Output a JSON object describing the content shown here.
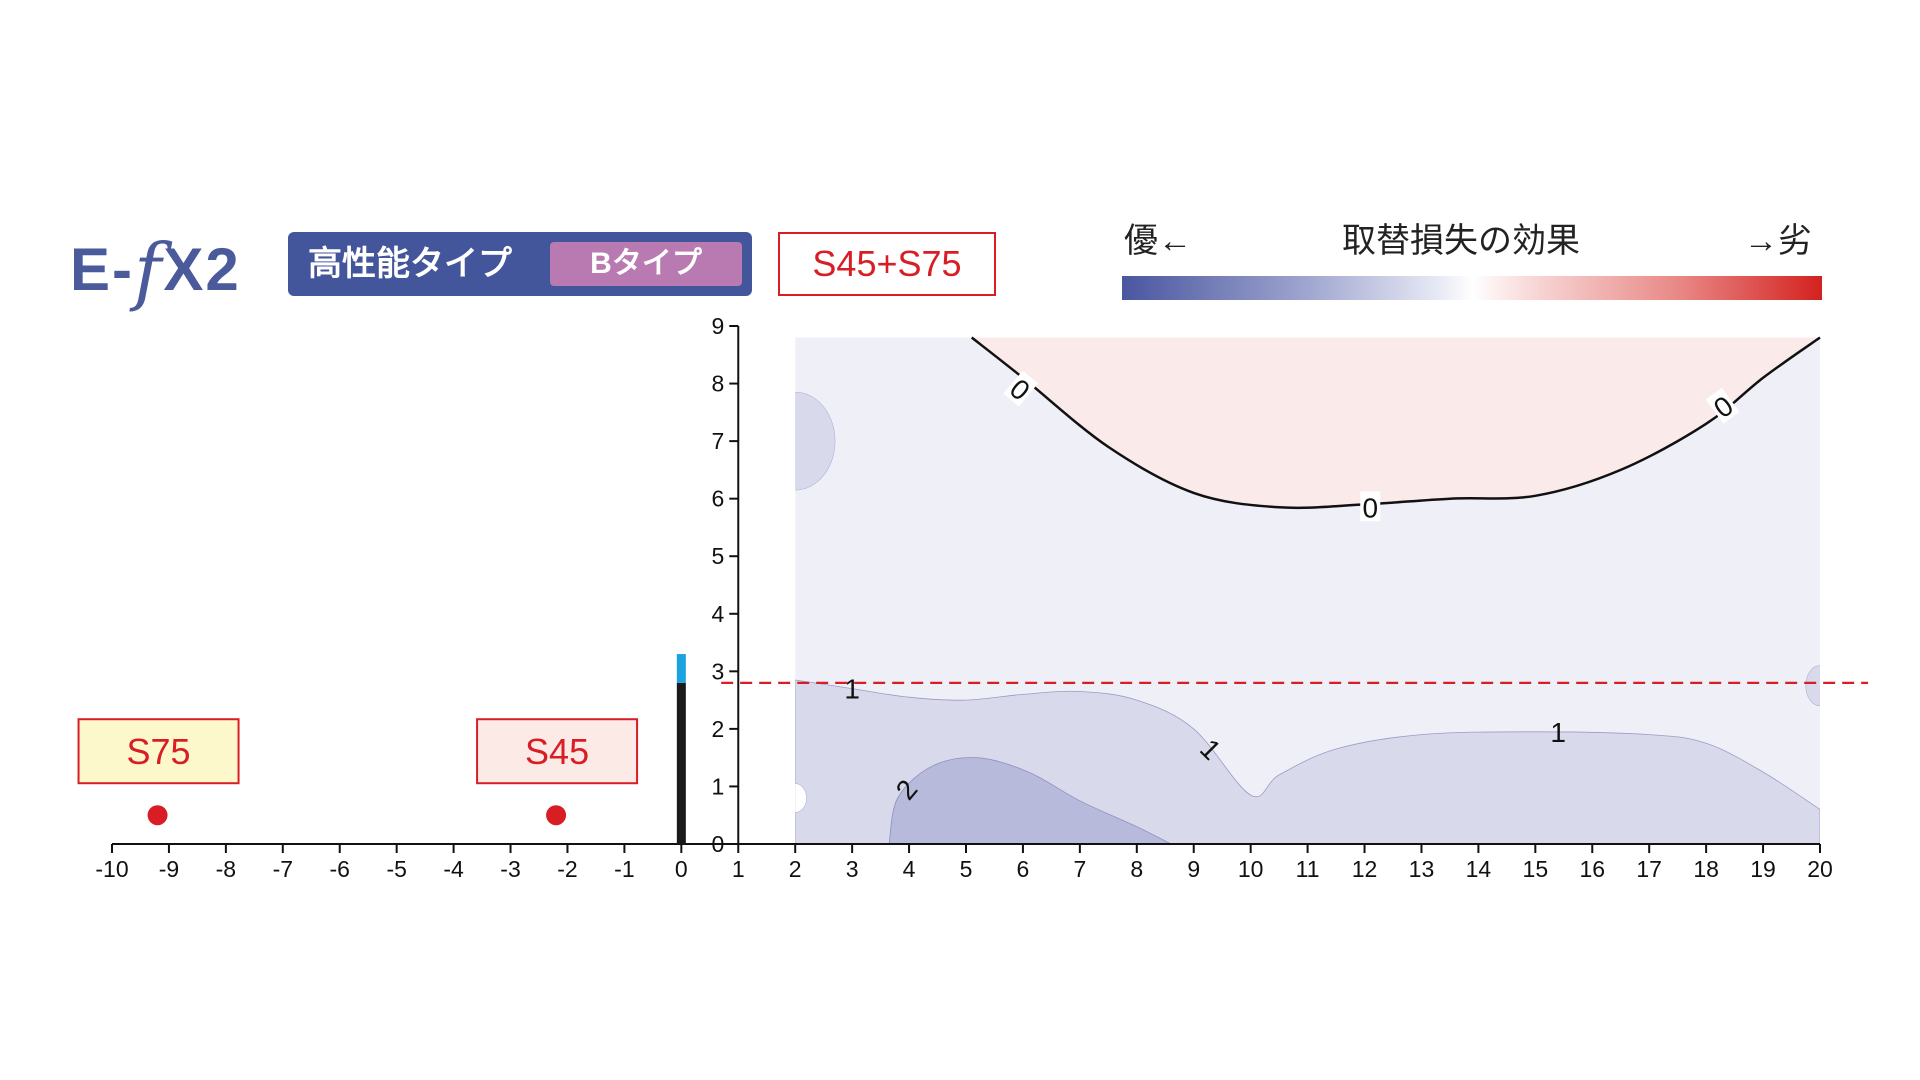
{
  "header": {
    "logo": {
      "prefix": "E-",
      "f": "f",
      "suffix": "X2"
    },
    "type_label": "高性能タイプ",
    "subtype_label": "Bタイプ",
    "combo_label": "S45+S75"
  },
  "legend": {
    "left": "優←",
    "title": "取替損失の効果",
    "right": "→劣",
    "colors": [
      "#4a56a0",
      "#ffffff",
      "#d3221f"
    ]
  },
  "chart_data": {
    "type": "contour",
    "x_ticks": [
      -10,
      -9,
      -8,
      -7,
      -6,
      -5,
      -4,
      -3,
      -2,
      -1,
      0,
      1,
      2,
      3,
      4,
      5,
      6,
      7,
      8,
      9,
      10,
      11,
      12,
      13,
      14,
      15,
      16,
      17,
      18,
      19,
      20
    ],
    "y_ticks": [
      0,
      1,
      2,
      3,
      4,
      5,
      6,
      7,
      8,
      9
    ],
    "xlim": [
      -10,
      20
    ],
    "ylim": [
      0,
      9
    ],
    "contour_region": {
      "x": [
        2,
        20
      ],
      "y": [
        0,
        8.8
      ]
    },
    "reference_line": {
      "y": 2.8,
      "style": "dashed",
      "color": "#d91d25"
    },
    "wall": {
      "x": 0,
      "height": 2.8,
      "top_height": 3.3,
      "color": "#1a1a1a",
      "top_color": "#1aa3e0"
    },
    "points": [
      {
        "label": "S75",
        "x": -9.2,
        "y": 0.5,
        "color": "#d91d25",
        "box_fill": "#fdf8cc"
      },
      {
        "label": "S45",
        "x": -2.2,
        "y": 0.5,
        "color": "#d91d25",
        "box_fill": "#fbeae6"
      }
    ],
    "contours": [
      {
        "level": "0",
        "color": "#111111",
        "fill": "#fbeaea",
        "points": [
          [
            5.1,
            8.8
          ],
          [
            6,
            8.1
          ],
          [
            7.5,
            6.9
          ],
          [
            9,
            6.1
          ],
          [
            10.5,
            5.85
          ],
          [
            12,
            5.9
          ],
          [
            13.5,
            6.0
          ],
          [
            15,
            6.05
          ],
          [
            16.5,
            6.5
          ],
          [
            18,
            7.3
          ],
          [
            19,
            8.1
          ],
          [
            20,
            8.8
          ]
        ],
        "labels": [
          {
            "text": "0",
            "x": 5.95,
            "y": 7.9,
            "rotate": 40
          },
          {
            "text": "0",
            "x": 12.1,
            "y": 5.85,
            "rotate": 0
          },
          {
            "text": "0",
            "x": 18.3,
            "y": 7.6,
            "rotate": -36
          }
        ]
      },
      {
        "level": "1",
        "fill": "#d8daec",
        "points": [
          [
            2,
            2.85
          ],
          [
            3,
            2.7
          ],
          [
            4,
            2.55
          ],
          [
            5,
            2.5
          ],
          [
            6,
            2.6
          ],
          [
            7,
            2.65
          ],
          [
            8,
            2.5
          ],
          [
            9,
            2.0
          ],
          [
            10,
            0.85
          ],
          [
            10.5,
            1.2
          ],
          [
            11.5,
            1.65
          ],
          [
            13,
            1.9
          ],
          [
            15,
            1.95
          ],
          [
            17,
            1.9
          ],
          [
            18,
            1.75
          ],
          [
            19,
            1.25
          ],
          [
            20,
            0.6
          ],
          [
            20,
            0
          ],
          [
            2,
            0
          ]
        ],
        "labels": [
          {
            "text": "1",
            "x": 3.0,
            "y": 2.7,
            "rotate": 0
          },
          {
            "text": "1",
            "x": 9.3,
            "y": 1.65,
            "rotate": 45
          },
          {
            "text": "1",
            "x": 15.4,
            "y": 1.95,
            "rotate": 0
          }
        ]
      },
      {
        "level": "2",
        "fill": "#b8badb",
        "points": [
          [
            3.65,
            0
          ],
          [
            3.8,
            0.8
          ],
          [
            4.4,
            1.35
          ],
          [
            5.2,
            1.5
          ],
          [
            6.1,
            1.25
          ],
          [
            7,
            0.75
          ],
          [
            8,
            0.3
          ],
          [
            8.6,
            0
          ]
        ],
        "labels": [
          {
            "text": "2",
            "x": 3.95,
            "y": 0.95,
            "rotate": -50
          }
        ]
      }
    ],
    "blobs": [
      {
        "cx": 2,
        "cy": 7.0,
        "rx": 0.7,
        "ry": 0.85,
        "fill": "#d8daec"
      },
      {
        "cx": 20,
        "cy": 2.75,
        "rx": 0.25,
        "ry": 0.35,
        "fill": "#d8daec"
      },
      {
        "cx": 2,
        "cy": 0.8,
        "rx": 0.2,
        "ry": 0.25,
        "fill": "#ffffff"
      }
    ],
    "background_fill": "#eeeff7"
  }
}
